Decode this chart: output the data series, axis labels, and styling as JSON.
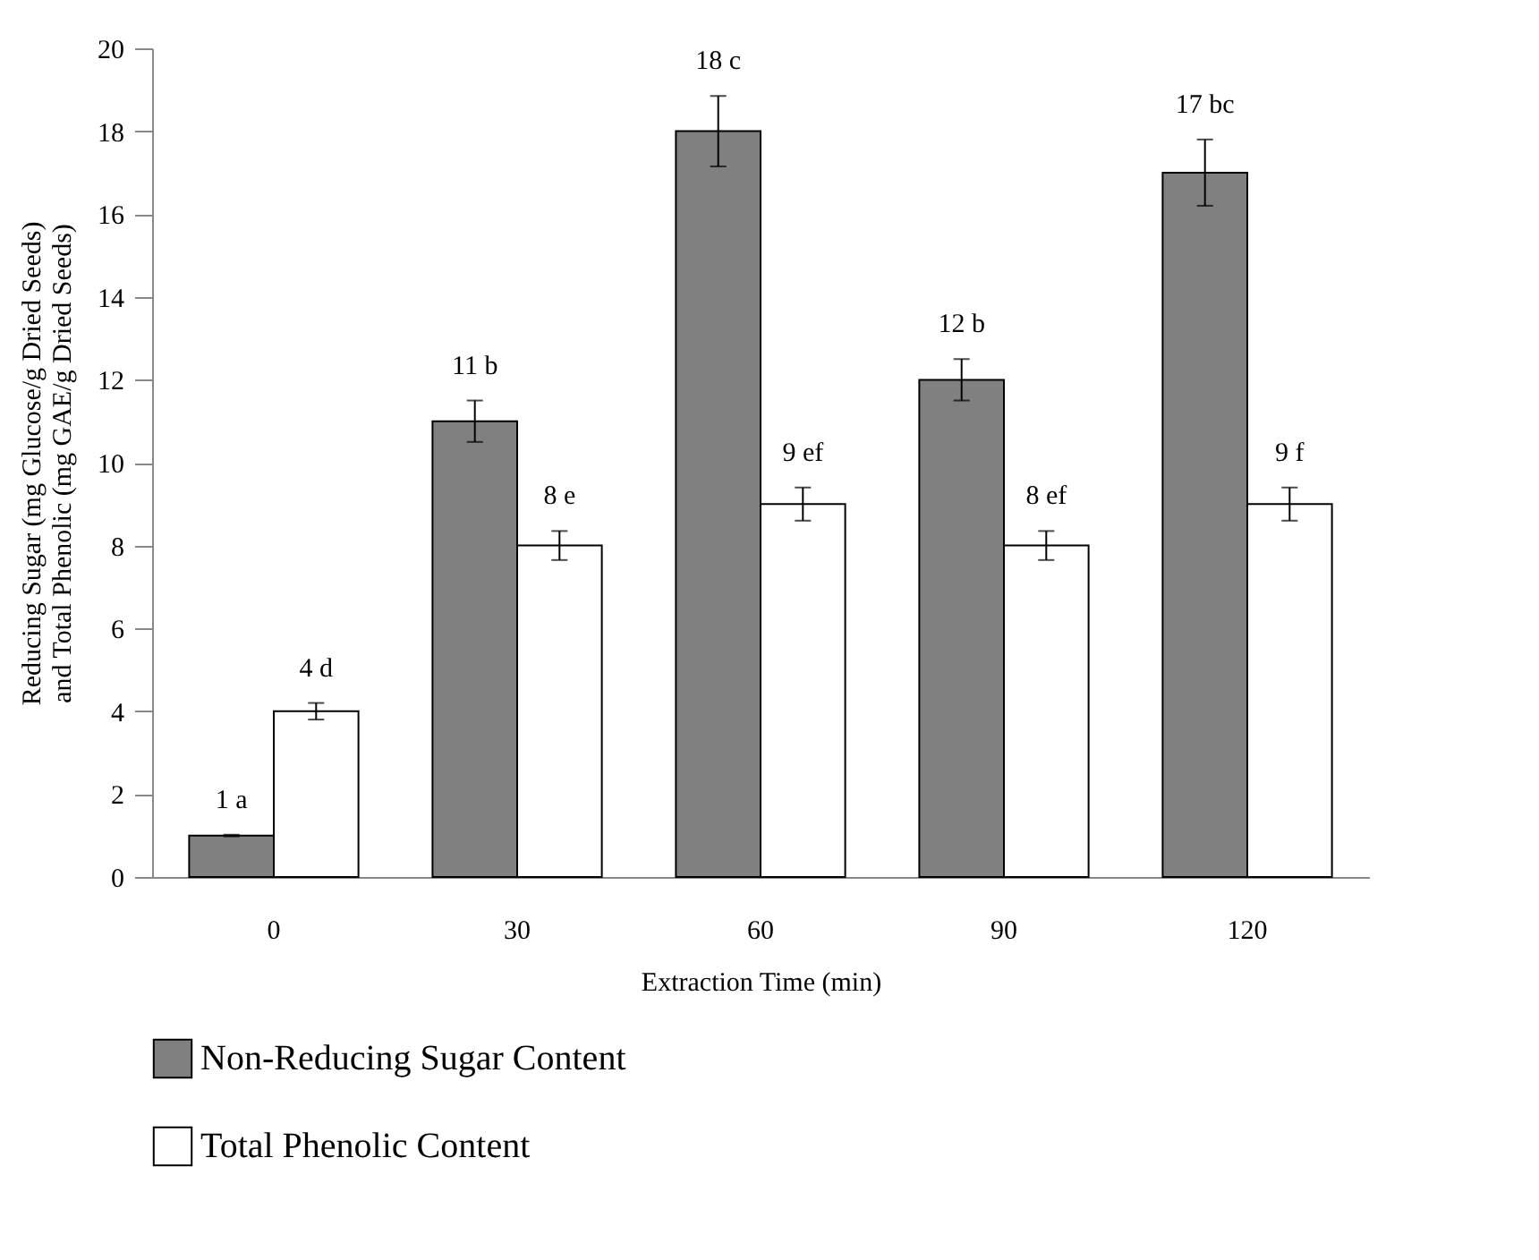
{
  "chart_data": {
    "type": "bar",
    "xlabel": "Extraction Time (min)",
    "ylabel": "Reducing Sugar (mg Glucose/g Dried Seeds) and Total Phenolic (mg GAE/g Dried Seeds)",
    "categories": [
      "0",
      "30",
      "60",
      "90",
      "120"
    ],
    "series": [
      {
        "name": "Non-Reducing Sugar Content",
        "color": "#808080",
        "values": [
          1,
          11,
          18,
          12,
          17
        ],
        "errors": [
          0.02,
          0.5,
          0.85,
          0.5,
          0.8
        ],
        "value_labels": [
          "1 a",
          "11 b",
          "18 c",
          "12 b",
          "17 bc"
        ]
      },
      {
        "name": "Total Phenolic Content",
        "color": "#ffffff",
        "values": [
          4,
          8,
          9,
          8,
          9
        ],
        "errors": [
          0.2,
          0.35,
          0.4,
          0.35,
          0.4
        ],
        "value_labels": [
          "4 d",
          "8 e",
          "9 ef",
          "8 ef",
          "9 f"
        ]
      }
    ],
    "ylim": [
      0,
      20
    ],
    "yticks": [
      0,
      2,
      4,
      6,
      8,
      10,
      12,
      14,
      16,
      18,
      20
    ],
    "grid": false,
    "legend": "bottom"
  }
}
